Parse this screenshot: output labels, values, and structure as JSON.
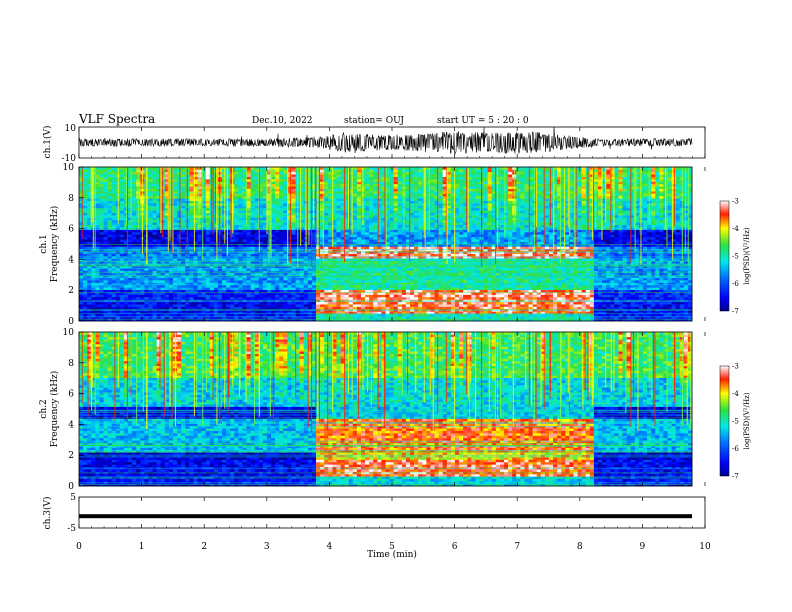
{
  "header": {
    "title": "VLF Spectra",
    "date": "Dec.10, 2022",
    "station": "station= OUJ",
    "start": "start  UT  =   5  : 20 : 0"
  },
  "colorbar": {
    "label": "log(PSD)(V²/Hz)",
    "ticks": [
      "-3",
      "-4",
      "-5",
      "-6",
      "-7"
    ]
  },
  "colors": {
    "dark_blue": "#000090",
    "blue": "#0050ff",
    "cyan": "#00e0e8",
    "green": "#30e040",
    "yellow": "#ffff00",
    "red": "#ff1010"
  },
  "chart_data": [
    {
      "type": "line",
      "name": "ch.1 waveform",
      "ylabel": "ch.1(V)",
      "ylim": [
        -10,
        10
      ],
      "yticks": [
        "10",
        "-10"
      ],
      "xlim": [
        0,
        10
      ],
      "envelope": {
        "x": [
          0,
          1,
          2,
          3,
          3.8,
          4.2,
          5,
          5.5,
          6,
          6.5,
          7,
          7.5,
          8,
          8.3,
          9,
          9.8
        ],
        "amplitude": [
          2,
          2,
          2,
          2,
          3,
          5,
          4,
          5,
          6,
          5,
          6,
          5,
          3,
          2,
          2,
          2
        ]
      }
    },
    {
      "type": "heatmap",
      "name": "ch.1 spectrogram",
      "ylabel": "ch.1",
      "ylabel2": "Frequency (kHz)",
      "ylim": [
        0,
        10
      ],
      "yticks": [
        "0",
        "2",
        "4",
        "6",
        "8",
        "10"
      ],
      "xlim": [
        0,
        10
      ],
      "zlim": [
        -7,
        -3
      ],
      "active_interval_min": [
        3.8,
        8.25
      ],
      "bands": [
        {
          "f": [
            0,
            0.5
          ],
          "quiet": -6.4,
          "active": -5.0
        },
        {
          "f": [
            0.5,
            1.3
          ],
          "quiet": -6.5,
          "active": -3.4
        },
        {
          "f": [
            1.3,
            2.1
          ],
          "quiet": -6.3,
          "active": -3.3
        },
        {
          "f": [
            2.1,
            4.0
          ],
          "quiet": -5.6,
          "active": -4.9
        },
        {
          "f": [
            4.0,
            4.8
          ],
          "quiet": -5.8,
          "active": -3.3
        },
        {
          "f": [
            4.8,
            6.0
          ],
          "quiet": -6.6,
          "active": -5.6
        },
        {
          "f": [
            6.0,
            8.0
          ],
          "quiet": -5.2,
          "active": -5.1
        },
        {
          "f": [
            8.0,
            10
          ],
          "quiet": -4.8,
          "active": -4.8
        }
      ]
    },
    {
      "type": "heatmap",
      "name": "ch.2 spectrogram",
      "ylabel": "ch.2",
      "ylabel2": "Frequency (kHz)",
      "ylim": [
        0,
        10
      ],
      "yticks": [
        "0",
        "2",
        "4",
        "6",
        "8",
        "10"
      ],
      "xlim": [
        0,
        10
      ],
      "zlim": [
        -7,
        -3
      ],
      "active_interval_min": [
        3.8,
        8.25
      ],
      "bands": [
        {
          "f": [
            0,
            0.7
          ],
          "quiet": -6.4,
          "active": -5.3
        },
        {
          "f": [
            0.7,
            1.7
          ],
          "quiet": -6.5,
          "active": -3.4
        },
        {
          "f": [
            1.7,
            2.2
          ],
          "quiet": -6.7,
          "active": -4.0
        },
        {
          "f": [
            2.2,
            4.3
          ],
          "quiet": -5.4,
          "active": -3.6
        },
        {
          "f": [
            4.3,
            5.2
          ],
          "quiet": -6.6,
          "active": -5.3
        },
        {
          "f": [
            5.2,
            7.0
          ],
          "quiet": -5.3,
          "active": -5.2
        },
        {
          "f": [
            7.0,
            10
          ],
          "quiet": -4.7,
          "active": -4.7
        }
      ]
    },
    {
      "type": "line",
      "name": "ch.3 waveform",
      "ylabel": "ch.3(V)",
      "ylim": [
        -5,
        5
      ],
      "yticks": [
        "5",
        "-5"
      ],
      "xlim": [
        0,
        10
      ],
      "level": -1.2
    }
  ],
  "xaxis": {
    "label": "Time  (min)",
    "ticks": [
      "0",
      "1",
      "2",
      "3",
      "4",
      "5",
      "6",
      "7",
      "8",
      "9",
      "10"
    ]
  }
}
